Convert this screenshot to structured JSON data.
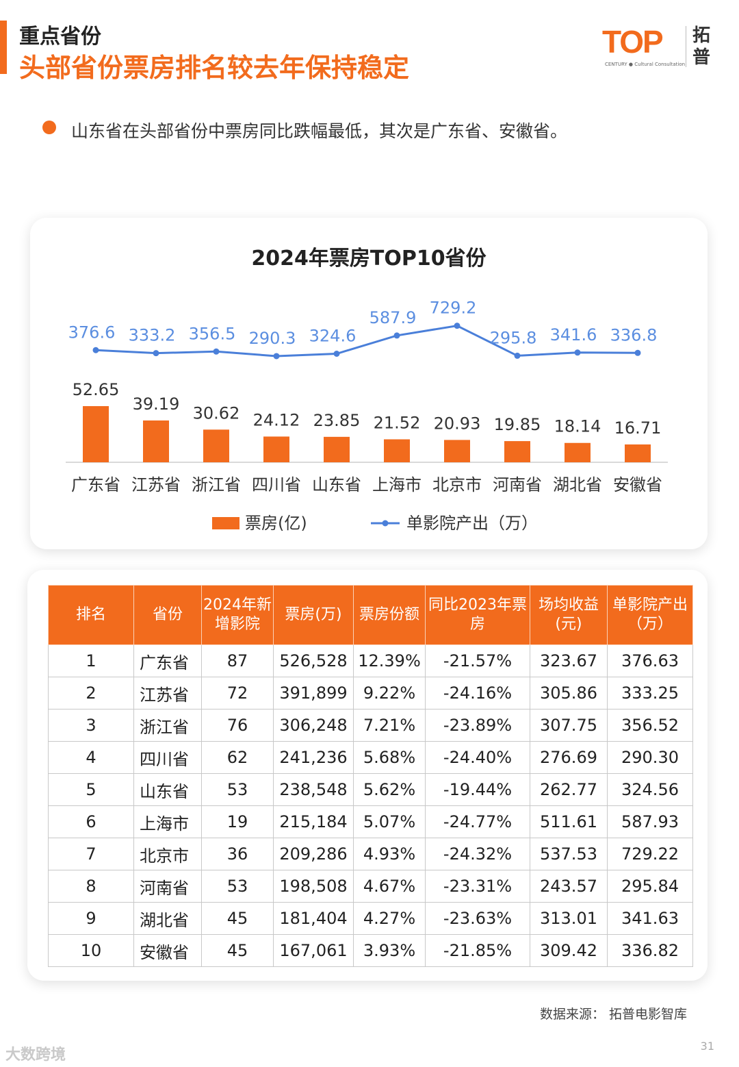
{
  "header": {
    "subtitle": "重点省份",
    "title": "头部省份票房排名较去年保持稳定"
  },
  "logo": {
    "brand": "TOP",
    "tagline": "CENTURY ● Cultural Consultation",
    "cn": "拓普"
  },
  "bullet": "山东省在头部省份中票房同比跌幅最低，其次是广东省、安徽省。",
  "colors": {
    "accent": "#f26b1d",
    "line": "#4a7fd9",
    "line_label": "#5b8ee0"
  },
  "chart_data": {
    "type": "bar",
    "title": "2024年票房TOP10省份",
    "categories": [
      "广东省",
      "江苏省",
      "浙江省",
      "四川省",
      "山东省",
      "上海市",
      "北京市",
      "河南省",
      "湖北省",
      "安徽省"
    ],
    "series": [
      {
        "name": "票房(亿)",
        "type": "bar",
        "values": [
          52.65,
          39.19,
          30.62,
          24.12,
          23.85,
          21.52,
          20.93,
          19.85,
          18.14,
          16.71
        ]
      },
      {
        "name": "单影院产出（万）",
        "type": "line",
        "values": [
          376.6,
          333.2,
          356.5,
          290.3,
          324.6,
          587.9,
          729.2,
          295.8,
          341.6,
          336.8
        ]
      }
    ],
    "legend_position": "bottom",
    "grid": false
  },
  "table": {
    "headers": [
      "排名",
      "省份",
      "2024年新增影院",
      "票房(万)",
      "票房份额",
      "同比2023年票房",
      "场均收益(元)",
      "单影院产出（万）"
    ],
    "rows": [
      [
        "1",
        "广东省",
        "87",
        "526,528",
        "12.39%",
        "-21.57%",
        "323.67",
        "376.63"
      ],
      [
        "2",
        "江苏省",
        "72",
        "391,899",
        "9.22%",
        "-24.16%",
        "305.86",
        "333.25"
      ],
      [
        "3",
        "浙江省",
        "76",
        "306,248",
        "7.21%",
        "-23.89%",
        "307.75",
        "356.52"
      ],
      [
        "4",
        "四川省",
        "62",
        "241,236",
        "5.68%",
        "-24.40%",
        "276.69",
        "290.30"
      ],
      [
        "5",
        "山东省",
        "53",
        "238,548",
        "5.62%",
        "-19.44%",
        "262.77",
        "324.56"
      ],
      [
        "6",
        "上海市",
        "19",
        "215,184",
        "5.07%",
        "-24.77%",
        "511.61",
        "587.93"
      ],
      [
        "7",
        "北京市",
        "36",
        "209,286",
        "4.93%",
        "-24.32%",
        "537.53",
        "729.22"
      ],
      [
        "8",
        "河南省",
        "53",
        "198,508",
        "4.67%",
        "-23.31%",
        "243.57",
        "295.84"
      ],
      [
        "9",
        "湖北省",
        "45",
        "181,404",
        "4.27%",
        "-23.63%",
        "313.01",
        "341.63"
      ],
      [
        "10",
        "安徽省",
        "45",
        "167,061",
        "3.93%",
        "-21.85%",
        "309.42",
        "336.82"
      ]
    ]
  },
  "source": "数据来源：  拓普电影智库",
  "page_number": "31",
  "watermark": "大数跨境"
}
